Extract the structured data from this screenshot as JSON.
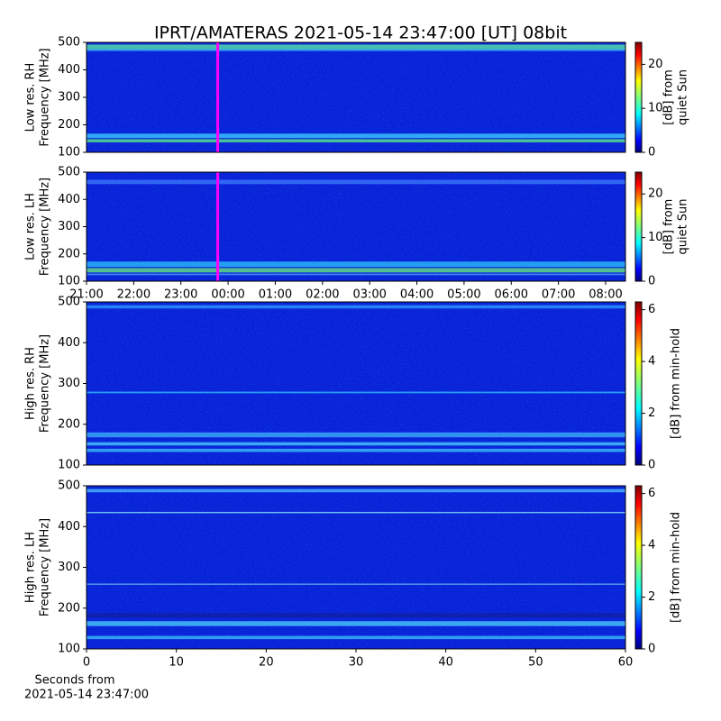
{
  "title": "IPRT/AMATERAS 2021-05-14 23:47:00 [UT]   08bit",
  "chart_data": [
    {
      "type": "heatmap",
      "ylabel": [
        "Low res. RH",
        "Frequency [MHz]"
      ],
      "ylim": [
        100,
        500
      ],
      "yticks": [
        100,
        200,
        300,
        400,
        500
      ],
      "xlim": [
        21,
        32.42
      ],
      "vline": {
        "x": 23.78,
        "color": "#ff00ff"
      },
      "colormap": "jet",
      "clim": [
        0,
        25
      ],
      "cticks": [
        0,
        10,
        20
      ],
      "clabel": [
        "[dB] from",
        "quiet Sun"
      ]
    },
    {
      "type": "heatmap",
      "ylabel": [
        "Low res. LH",
        "Frequency [MHz]"
      ],
      "ylim": [
        100,
        500
      ],
      "yticks": [
        100,
        200,
        300,
        400,
        500
      ],
      "xlim": [
        21,
        32.42
      ],
      "vline": {
        "x": 23.78,
        "color": "#ff00ff"
      },
      "xticks": [
        {
          "value": 21,
          "label": "21:00"
        },
        {
          "value": 22,
          "label": "22:00"
        },
        {
          "value": 23,
          "label": "23:00"
        },
        {
          "value": 24,
          "label": "00:00"
        },
        {
          "value": 25,
          "label": "01:00"
        },
        {
          "value": 26,
          "label": "02:00"
        },
        {
          "value": 27,
          "label": "03:00"
        },
        {
          "value": 28,
          "label": "04:00"
        },
        {
          "value": 29,
          "label": "05:00"
        },
        {
          "value": 30,
          "label": "06:00"
        },
        {
          "value": 31,
          "label": "07:00"
        },
        {
          "value": 32,
          "label": "08:00"
        }
      ],
      "colormap": "jet",
      "clim": [
        0,
        25
      ],
      "cticks": [
        0,
        10,
        20
      ],
      "clabel": [
        "[dB] from",
        "quiet Sun"
      ]
    },
    {
      "type": "heatmap",
      "ylabel": [
        "High res. RH",
        "Frequency [MHz]"
      ],
      "ylim": [
        100,
        500
      ],
      "yticks": [
        100,
        200,
        300,
        400,
        500
      ],
      "xlim": [
        0,
        60
      ],
      "colormap": "jet",
      "clim": [
        0,
        6.3
      ],
      "cticks": [
        0,
        2,
        4,
        6
      ],
      "clabel": [
        "[dB] from min-hold"
      ]
    },
    {
      "type": "heatmap",
      "ylabel": [
        "High res. LH",
        "Frequency [MHz]"
      ],
      "ylim": [
        100,
        500
      ],
      "yticks": [
        100,
        200,
        300,
        400,
        500
      ],
      "xlim": [
        0,
        60
      ],
      "xticks": [
        0,
        10,
        20,
        30,
        40,
        50,
        60
      ],
      "xlabel": [
        "Seconds from",
        "2021-05-14 23:47:00"
      ],
      "colormap": "jet",
      "clim": [
        0,
        6.3
      ],
      "cticks": [
        0,
        2,
        4,
        6
      ],
      "clabel": [
        "[dB] from min-hold"
      ]
    }
  ]
}
